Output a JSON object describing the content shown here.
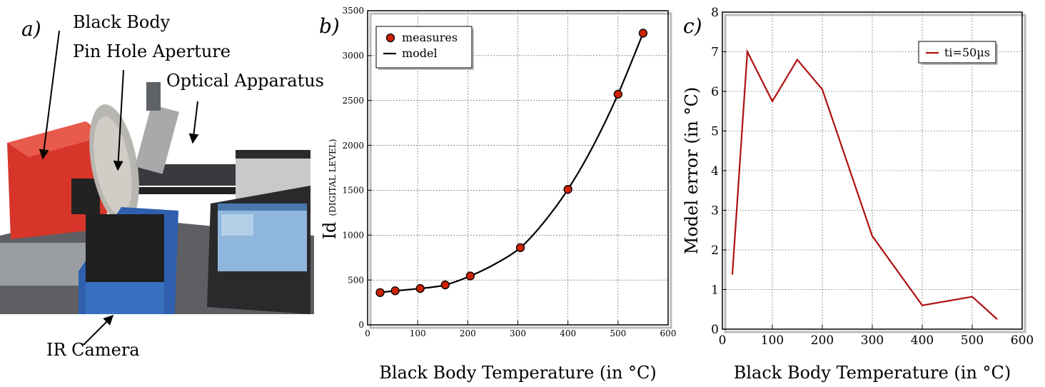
{
  "panel_a": {
    "letter": "a)",
    "labels": {
      "black_body": "Black Body",
      "pin_hole": "Pin Hole Aperture",
      "optical": "Optical Apparatus",
      "ir_camera": "IR Camera"
    }
  },
  "panel_b": {
    "letter": "b)"
  },
  "panel_c": {
    "letter": "c)"
  },
  "chart_data": [
    {
      "type": "scatter",
      "xlabel": "Black Body Temperature (in °C)",
      "ylabel": "Id",
      "ylabel_sub": "(DIGITAL LEVEL)",
      "xlim": [
        0,
        600
      ],
      "ylim": [
        0,
        3500
      ],
      "xticks": [
        0,
        100,
        200,
        300,
        400,
        500,
        600
      ],
      "yticks": [
        0,
        500,
        1000,
        1500,
        2000,
        2500,
        3000,
        3500
      ],
      "grid": true,
      "legend_position": "top-left",
      "series": [
        {
          "name": "measures",
          "kind": "points",
          "color": "#cc2200",
          "x": [
            25,
            55,
            105,
            155,
            205,
            305,
            400,
            500,
            550
          ],
          "y": [
            360,
            380,
            405,
            445,
            545,
            860,
            1510,
            2570,
            3250
          ]
        },
        {
          "name": "model",
          "kind": "line",
          "color": "#000000",
          "x": [
            25,
            55,
            105,
            155,
            205,
            255,
            305,
            350,
            400,
            450,
            500,
            550
          ],
          "y": [
            360,
            380,
            405,
            445,
            545,
            680,
            860,
            1130,
            1510,
            1990,
            2570,
            3250
          ]
        }
      ]
    },
    {
      "type": "line",
      "xlabel": "Black Body Temperature (in °C)",
      "ylabel": "Model error (in °C)",
      "xlim": [
        0,
        600
      ],
      "ylim": [
        0,
        8
      ],
      "xticks": [
        0,
        100,
        200,
        300,
        400,
        500,
        600
      ],
      "yticks": [
        0,
        1,
        2,
        3,
        4,
        5,
        6,
        7,
        8
      ],
      "grid": true,
      "legend_position": "top-right",
      "series": [
        {
          "name": "ti=50µs",
          "color": "#b01010",
          "x": [
            20,
            50,
            100,
            150,
            200,
            300,
            400,
            500,
            550
          ],
          "y": [
            1.38,
            7.0,
            5.75,
            6.8,
            6.05,
            2.35,
            0.6,
            0.82,
            0.25
          ]
        }
      ]
    }
  ]
}
